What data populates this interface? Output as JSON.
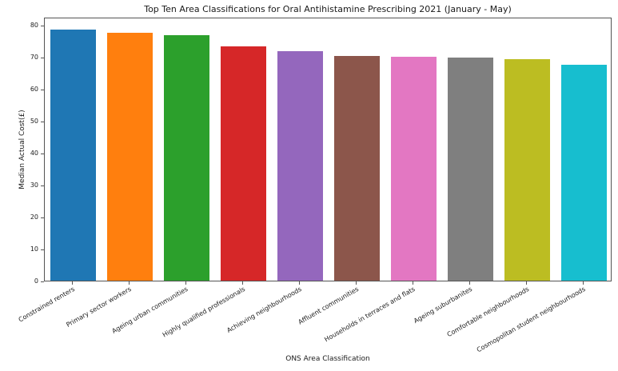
{
  "chart_data": {
    "type": "bar",
    "title": "Top Ten Area Classifications for Oral Antihistamine Prescribing 2021 (January - May)",
    "xlabel": "ONS Area Classification",
    "ylabel": "Median Actual Cost(£)",
    "categories": [
      "Constrained renters",
      "Primary sector workers",
      "Ageing urban communities",
      "Highly qualified professionals",
      "Achieving neighbourhoods",
      "Affluent communities",
      "Households in terraces and flats",
      "Ageing suburbanites",
      "Comfortable neighbourhoods",
      "Cosmopolitan student neighbourhoods"
    ],
    "values": [
      79.0,
      78.0,
      77.2,
      73.8,
      72.3,
      70.7,
      70.4,
      70.1,
      69.7,
      68.0
    ],
    "ylim": [
      0,
      82.5
    ],
    "yticks": [
      0,
      10,
      20,
      30,
      40,
      50,
      60,
      70,
      80
    ],
    "bar_colors": [
      "#1f77b4",
      "#ff7f0e",
      "#2ca02c",
      "#d62728",
      "#9467bd",
      "#8c564b",
      "#e377c2",
      "#7f7f7f",
      "#bcbd22",
      "#17becf"
    ],
    "grid": false,
    "legend": "none",
    "background": "#ffffff"
  }
}
